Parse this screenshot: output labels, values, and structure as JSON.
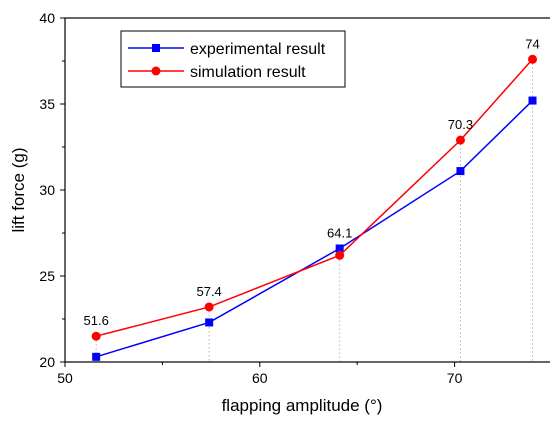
{
  "chart_data": {
    "type": "line",
    "xlabel": "flapping amplitude (°)",
    "ylabel": "lift force (g)",
    "xlim": [
      50,
      75
    ],
    "ylim": [
      20,
      40
    ],
    "xticks": [
      50,
      60,
      70
    ],
    "yticks": [
      20,
      25,
      30,
      35,
      40
    ],
    "x": [
      51.6,
      57.4,
      64.1,
      70.3,
      74
    ],
    "point_labels": [
      "51.6",
      "57.4",
      "64.1",
      "70.3",
      "74"
    ],
    "grid": false,
    "reference_lines": "dotted vertical at each x",
    "legend_position": "top-left",
    "series": [
      {
        "name": "experimental result",
        "color": "#0000FF",
        "marker": "square",
        "values": [
          20.3,
          22.3,
          26.6,
          31.1,
          35.2
        ]
      },
      {
        "name": "simulation result",
        "color": "#FF0000",
        "marker": "circle",
        "values": [
          21.5,
          23.2,
          26.2,
          32.9,
          37.6
        ]
      }
    ]
  }
}
